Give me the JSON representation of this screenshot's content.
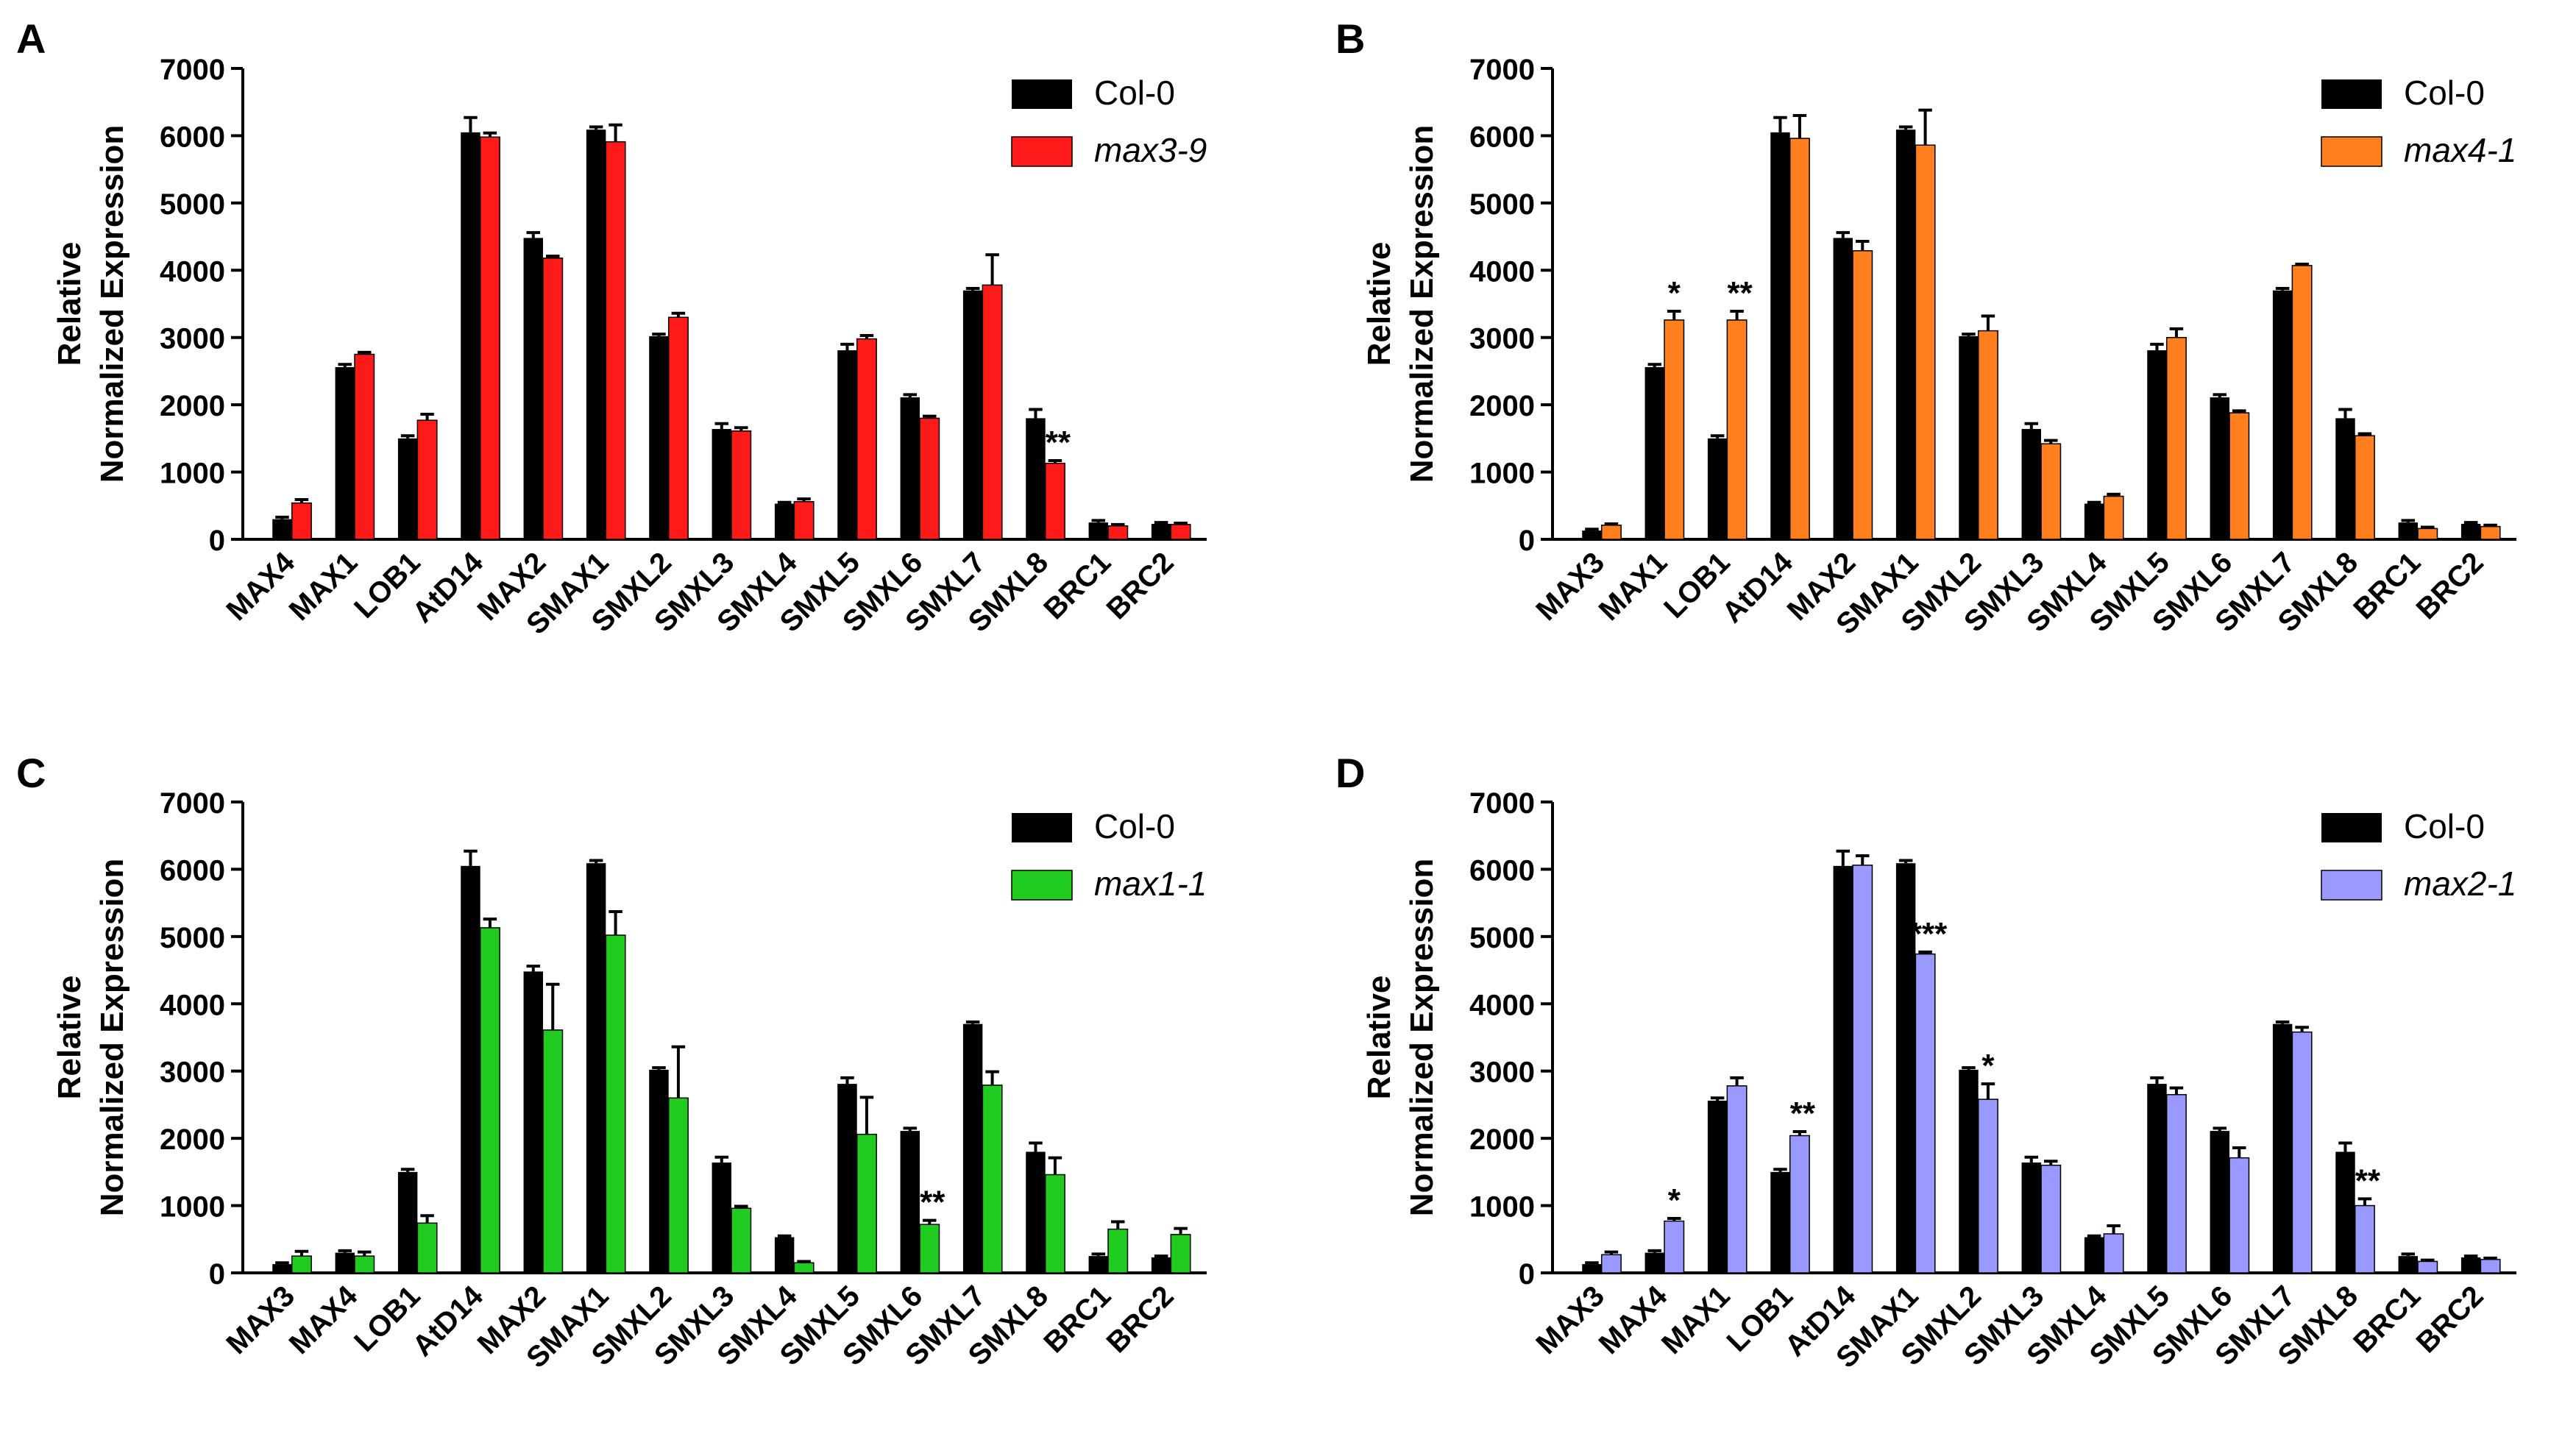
{
  "colors": {
    "control": "#000000",
    "panel_A": "#ff1a1a",
    "panel_B": "#ff7f1f",
    "panel_C": "#1fcc1f",
    "panel_D": "#9999ff"
  },
  "chart_data": [
    {
      "type": "bar",
      "panel_label": "A",
      "ylabel_line1": "Relative",
      "ylabel_line2": "Normalized Expression",
      "ylim": [
        0,
        7000
      ],
      "yticks": [
        "0",
        "1000",
        "2000",
        "3000",
        "4000",
        "5000",
        "6000",
        "7000"
      ],
      "legend_position": "top-right",
      "categories": [
        "MAX4",
        "MAX1",
        "LOB1",
        "AtD14",
        "MAX2",
        "SMAX1",
        "SMXL2",
        "SMXL3",
        "SMXL4",
        "SMXL5",
        "SMXL6",
        "SMXL7",
        "SMXL8",
        "BRC1",
        "BRC2"
      ],
      "series": [
        {
          "name": "Col-0",
          "color_key": "control",
          "values": [
            300,
            2560,
            1500,
            6050,
            4480,
            6090,
            3020,
            1640,
            530,
            2810,
            2110,
            3700,
            1800,
            250,
            230
          ],
          "errors": [
            30,
            40,
            40,
            220,
            80,
            40,
            30,
            80,
            20,
            90,
            40,
            30,
            130,
            30,
            20
          ]
        },
        {
          "name": "max3-9",
          "color_key": "panel_A",
          "values": [
            540,
            2750,
            1770,
            5980,
            4180,
            5910,
            3300,
            1610,
            560,
            2980,
            1800,
            3780,
            1130,
            200,
            220
          ],
          "errors": [
            50,
            30,
            90,
            60,
            30,
            250,
            60,
            50,
            40,
            50,
            30,
            450,
            40,
            20,
            20
          ]
        }
      ],
      "annotations": [
        {
          "category": "SMXL8",
          "text": "**"
        }
      ]
    },
    {
      "type": "bar",
      "panel_label": "B",
      "ylabel_line1": "Relative",
      "ylabel_line2": "Normalized Expression",
      "ylim": [
        0,
        7000
      ],
      "yticks": [
        "0",
        "1000",
        "2000",
        "3000",
        "4000",
        "5000",
        "6000",
        "7000"
      ],
      "legend_position": "top-right",
      "categories": [
        "MAX3",
        "MAX1",
        "LOB1",
        "AtD14",
        "MAX2",
        "SMAX1",
        "SMXL2",
        "SMXL3",
        "SMXL4",
        "SMXL5",
        "SMXL6",
        "SMXL7",
        "SMXL8",
        "BRC1",
        "BRC2"
      ],
      "series": [
        {
          "name": "Col-0",
          "color_key": "control",
          "values": [
            130,
            2560,
            1500,
            6050,
            4480,
            6090,
            3020,
            1640,
            530,
            2810,
            2110,
            3700,
            1800,
            250,
            230
          ],
          "errors": [
            20,
            40,
            40,
            220,
            80,
            40,
            30,
            80,
            20,
            90,
            40,
            30,
            130,
            30,
            20
          ]
        },
        {
          "name": "max4-1",
          "color_key": "panel_B",
          "values": [
            210,
            3260,
            3260,
            5960,
            4290,
            5860,
            3100,
            1420,
            640,
            3000,
            1880,
            4070,
            1540,
            160,
            190
          ],
          "errors": [
            20,
            130,
            130,
            340,
            140,
            520,
            220,
            50,
            30,
            130,
            30,
            20,
            30,
            20,
            20
          ]
        }
      ],
      "annotations": [
        {
          "category": "MAX1",
          "text": "*"
        },
        {
          "category": "LOB1",
          "text": "**"
        }
      ]
    },
    {
      "type": "bar",
      "panel_label": "C",
      "ylabel_line1": "Relative",
      "ylabel_line2": "Normalized Expression",
      "ylim": [
        0,
        7000
      ],
      "yticks": [
        "0",
        "1000",
        "2000",
        "3000",
        "4000",
        "5000",
        "6000",
        "7000"
      ],
      "legend_position": "top-right",
      "categories": [
        "MAX3",
        "MAX4",
        "LOB1",
        "AtD14",
        "MAX2",
        "SMAX1",
        "SMXL2",
        "SMXL3",
        "SMXL4",
        "SMXL5",
        "SMXL6",
        "SMXL7",
        "SMXL8",
        "BRC1",
        "BRC2"
      ],
      "series": [
        {
          "name": "Col-0",
          "color_key": "control",
          "values": [
            130,
            300,
            1500,
            6050,
            4480,
            6090,
            3020,
            1640,
            530,
            2810,
            2110,
            3700,
            1800,
            250,
            230
          ],
          "errors": [
            20,
            30,
            40,
            220,
            80,
            40,
            30,
            80,
            20,
            90,
            40,
            30,
            130,
            30,
            20
          ]
        },
        {
          "name": "max1-1",
          "color_key": "panel_C",
          "values": [
            250,
            250,
            740,
            5130,
            3610,
            5020,
            2600,
            960,
            150,
            2060,
            720,
            2790,
            1460,
            650,
            570
          ],
          "errors": [
            70,
            60,
            110,
            130,
            680,
            350,
            760,
            30,
            20,
            550,
            60,
            200,
            250,
            110,
            90
          ]
        }
      ],
      "annotations": [
        {
          "category": "SMXL6",
          "text": "**"
        }
      ]
    },
    {
      "type": "bar",
      "panel_label": "D",
      "ylabel_line1": "Relative",
      "ylabel_line2": "Normalized Expression",
      "ylim": [
        0,
        7000
      ],
      "yticks": [
        "0",
        "1000",
        "2000",
        "3000",
        "4000",
        "5000",
        "6000",
        "7000"
      ],
      "legend_position": "top-right",
      "categories": [
        "MAX3",
        "MAX4",
        "MAX1",
        "LOB1",
        "AtD14",
        "SMAX1",
        "SMXL2",
        "SMXL3",
        "SMXL4",
        "SMXL5",
        "SMXL6",
        "SMXL7",
        "SMXL8",
        "BRC1",
        "BRC2"
      ],
      "series": [
        {
          "name": "Col-0",
          "color_key": "control",
          "values": [
            130,
            300,
            2560,
            1500,
            6050,
            6090,
            3020,
            1640,
            530,
            2810,
            2110,
            3700,
            1800,
            250,
            230
          ],
          "errors": [
            20,
            30,
            40,
            40,
            220,
            40,
            30,
            80,
            20,
            90,
            40,
            30,
            130,
            30,
            20
          ]
        },
        {
          "name": "max2-1",
          "color_key": "panel_D",
          "values": [
            270,
            770,
            2780,
            2040,
            6060,
            4740,
            2580,
            1600,
            580,
            2650,
            1710,
            3580,
            1000,
            170,
            200
          ],
          "errors": [
            40,
            40,
            120,
            60,
            140,
            30,
            230,
            60,
            120,
            100,
            150,
            70,
            100,
            20,
            20
          ]
        }
      ],
      "annotations": [
        {
          "category": "MAX4",
          "text": "*"
        },
        {
          "category": "LOB1",
          "text": "**"
        },
        {
          "category": "SMAX1",
          "text": "***"
        },
        {
          "category": "SMXL2",
          "text": "*"
        },
        {
          "category": "SMXL8",
          "text": "**"
        }
      ]
    }
  ]
}
